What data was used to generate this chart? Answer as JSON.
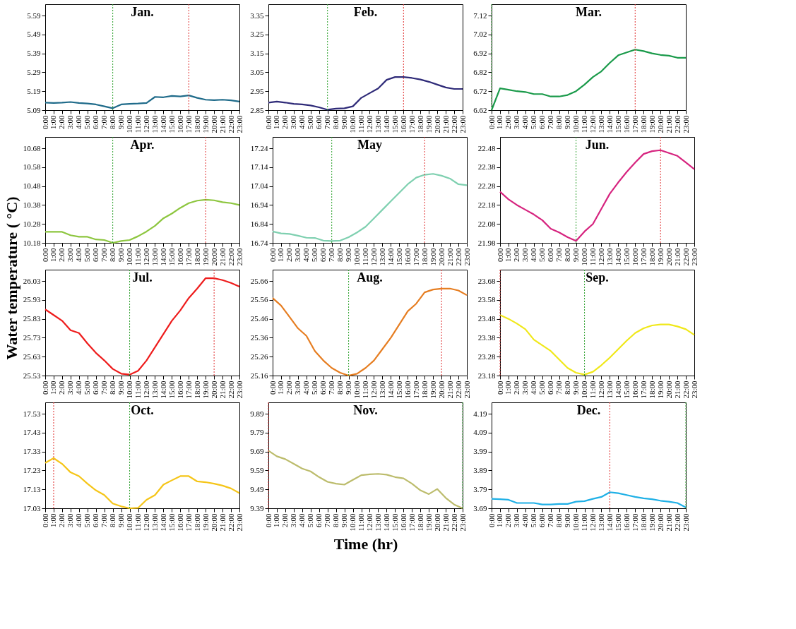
{
  "chart_data": [
    {
      "type": "line",
      "title": "Jan.",
      "color": "#1f6b8a",
      "categories": [
        "0:00",
        "1:00",
        "2:00",
        "3:00",
        "4:00",
        "5:00",
        "6:00",
        "7:00",
        "8:00",
        "9:00",
        "10:00",
        "11:00",
        "12:00",
        "13:00",
        "14:00",
        "15:00",
        "16:00",
        "17:00",
        "18:00",
        "19:00",
        "20:00",
        "21:00",
        "22:00",
        "23:00"
      ],
      "values": [
        5.13,
        5.128,
        5.13,
        5.133,
        5.128,
        5.125,
        5.12,
        5.11,
        5.1,
        5.12,
        5.123,
        5.125,
        5.128,
        5.16,
        5.158,
        5.165,
        5.162,
        5.168,
        5.155,
        5.145,
        5.143,
        5.145,
        5.142,
        5.135
      ],
      "ylim": [
        5.09,
        5.65
      ],
      "yticks": [
        5.09,
        5.19,
        5.29,
        5.39,
        5.49,
        5.59
      ],
      "grid": false,
      "ref_lines": [
        {
          "axis": "x",
          "value": "8:00",
          "color": "#2ca02c",
          "line_style": "dotted"
        },
        {
          "axis": "x",
          "value": "17:00",
          "color": "#e03030",
          "line_style": "dotted"
        }
      ]
    },
    {
      "type": "line",
      "title": "Feb.",
      "color": "#2e2a78",
      "categories": [
        "0:00",
        "1:00",
        "2:00",
        "3:00",
        "4:00",
        "5:00",
        "6:00",
        "7:00",
        "8:00",
        "9:00",
        "10:00",
        "11:00",
        "12:00",
        "13:00",
        "14:00",
        "15:00",
        "16:00",
        "17:00",
        "18:00",
        "19:00",
        "20:00",
        "21:00",
        "22:00",
        "23:00"
      ],
      "values": [
        2.89,
        2.895,
        2.89,
        2.883,
        2.88,
        2.875,
        2.865,
        2.852,
        2.858,
        2.86,
        2.87,
        2.915,
        2.94,
        2.965,
        3.01,
        3.025,
        3.025,
        3.02,
        3.012,
        3.0,
        2.985,
        2.97,
        2.962,
        2.962
      ],
      "ylim": [
        2.85,
        3.41
      ],
      "yticks": [
        2.85,
        2.95,
        3.05,
        3.15,
        3.25,
        3.35
      ],
      "grid": false,
      "ref_lines": [
        {
          "axis": "x",
          "value": "7:00",
          "color": "#2ca02c",
          "line_style": "dotted"
        },
        {
          "axis": "x",
          "value": "16:00",
          "color": "#e03030",
          "line_style": "dotted"
        }
      ]
    },
    {
      "type": "line",
      "title": "Mar.",
      "color": "#1a9a4a",
      "categories": [
        "0:00",
        "1:00",
        "2:00",
        "3:00",
        "4:00",
        "5:00",
        "6:00",
        "7:00",
        "8:00",
        "9:00",
        "10:00",
        "11:00",
        "12:00",
        "13:00",
        "14:00",
        "15:00",
        "16:00",
        "17:00",
        "18:00",
        "19:00",
        "20:00",
        "21:00",
        "22:00",
        "23:00"
      ],
      "values": [
        6.62,
        6.735,
        6.728,
        6.72,
        6.716,
        6.705,
        6.705,
        6.692,
        6.692,
        6.7,
        6.72,
        6.755,
        6.795,
        6.825,
        6.87,
        6.91,
        6.925,
        6.94,
        6.932,
        6.92,
        6.912,
        6.908,
        6.897,
        6.897
      ],
      "ylim": [
        6.62,
        7.18
      ],
      "yticks": [
        6.62,
        6.72,
        6.82,
        6.92,
        7.02,
        7.12
      ],
      "grid": false,
      "ref_lines": [
        {
          "axis": "x",
          "value": "0:00",
          "color": "#2ca02c",
          "line_style": "dotted"
        },
        {
          "axis": "x",
          "value": "17:00",
          "color": "#e03030",
          "line_style": "dotted"
        }
      ]
    },
    {
      "type": "line",
      "title": "Apr.",
      "ylabel": "Water temperature ( °C)",
      "color": "#8dc63f",
      "categories": [
        "0:00",
        "1:00",
        "2:00",
        "3:00",
        "4:00",
        "5:00",
        "6:00",
        "7:00",
        "8:00",
        "9:00",
        "10:00",
        "11:00",
        "12:00",
        "13:00",
        "14:00",
        "15:00",
        "16:00",
        "17:00",
        "18:00",
        "19:00",
        "20:00",
        "21:00",
        "22:00",
        "23:00"
      ],
      "values": [
        10.238,
        10.238,
        10.238,
        10.22,
        10.212,
        10.212,
        10.198,
        10.195,
        10.18,
        10.19,
        10.195,
        10.215,
        10.24,
        10.27,
        10.31,
        10.335,
        10.365,
        10.39,
        10.403,
        10.408,
        10.405,
        10.395,
        10.39,
        10.38
      ],
      "ylim": [
        10.18,
        10.74
      ],
      "yticks": [
        10.18,
        10.28,
        10.38,
        10.48,
        10.58,
        10.68
      ],
      "grid": false,
      "ref_lines": [
        {
          "axis": "x",
          "value": "8:00",
          "color": "#2ca02c",
          "line_style": "dotted"
        },
        {
          "axis": "x",
          "value": "19:00",
          "color": "#e03030",
          "line_style": "dotted"
        }
      ]
    },
    {
      "type": "line",
      "title": "May",
      "color": "#7fd0b0",
      "categories": [
        "0:00",
        "1:00",
        "2:00",
        "3:00",
        "4:00",
        "5:00",
        "6:00",
        "7:00",
        "8:00",
        "9:00",
        "10:00",
        "11:00",
        "12:00",
        "13:00",
        "14:00",
        "15:00",
        "16:00",
        "17:00",
        "18:00",
        "19:00",
        "20:00",
        "21:00",
        "22:00",
        "23:00"
      ],
      "values": [
        16.8,
        16.79,
        16.787,
        16.778,
        16.767,
        16.766,
        16.752,
        16.75,
        16.752,
        16.77,
        16.795,
        16.825,
        16.87,
        16.915,
        16.96,
        17.005,
        17.05,
        17.085,
        17.1,
        17.105,
        17.095,
        17.08,
        17.05,
        17.045
      ],
      "ylim": [
        16.74,
        17.3
      ],
      "yticks": [
        16.74,
        16.84,
        16.94,
        17.04,
        17.14,
        17.24
      ],
      "grid": false,
      "ref_lines": [
        {
          "axis": "x",
          "value": "7:00",
          "color": "#2ca02c",
          "line_style": "dotted"
        },
        {
          "axis": "x",
          "value": "18:00",
          "color": "#e03030",
          "line_style": "dotted"
        }
      ]
    },
    {
      "type": "line",
      "title": "Jun.",
      "color": "#d6247f",
      "categories": [
        "0:00",
        "1:00",
        "2:00",
        "3:00",
        "4:00",
        "5:00",
        "6:00",
        "7:00",
        "8:00",
        "9:00",
        "10:00",
        "11:00",
        "12:00",
        "13:00",
        "14:00",
        "15:00",
        "16:00",
        "17:00",
        "18:00",
        "19:00",
        "20:00",
        "21:00",
        "22:00",
        "23:00"
      ],
      "values": [
        22.25,
        22.21,
        22.18,
        22.155,
        22.13,
        22.1,
        22.055,
        22.035,
        22.01,
        21.99,
        22.04,
        22.08,
        22.16,
        22.24,
        22.3,
        22.355,
        22.405,
        22.45,
        22.465,
        22.47,
        22.455,
        22.44,
        22.405,
        22.37
      ],
      "ylim": [
        21.98,
        22.54
      ],
      "yticks": [
        21.98,
        22.08,
        22.18,
        22.28,
        22.38,
        22.48
      ],
      "grid": false,
      "ref_lines": [
        {
          "axis": "x",
          "value": "9:00",
          "color": "#2ca02c",
          "line_style": "dotted"
        },
        {
          "axis": "x",
          "value": "19:00",
          "color": "#e03030",
          "line_style": "dotted"
        }
      ]
    },
    {
      "type": "line",
      "title": "Jul.",
      "color": "#ee1c1c",
      "categories": [
        "0:00",
        "1:00",
        "2:00",
        "3:00",
        "4:00",
        "5:00",
        "6:00",
        "7:00",
        "8:00",
        "9:00",
        "10:00",
        "11:00",
        "12:00",
        "13:00",
        "14:00",
        "15:00",
        "16:00",
        "17:00",
        "18:00",
        "19:00",
        "20:00",
        "21:00",
        "22:00",
        "23:00"
      ],
      "values": [
        25.88,
        25.85,
        25.82,
        25.77,
        25.755,
        25.7,
        25.65,
        25.61,
        25.565,
        25.54,
        25.535,
        25.555,
        25.61,
        25.68,
        25.75,
        25.82,
        25.875,
        25.94,
        25.99,
        26.045,
        26.045,
        26.035,
        26.02,
        26.0
      ],
      "ylim": [
        25.53,
        26.09
      ],
      "yticks": [
        25.53,
        25.63,
        25.73,
        25.83,
        25.93,
        26.03
      ],
      "grid": false,
      "ref_lines": [
        {
          "axis": "x",
          "value": "10:00",
          "color": "#2ca02c",
          "line_style": "dotted"
        },
        {
          "axis": "x",
          "value": "20:00",
          "color": "#e03030",
          "line_style": "dotted"
        }
      ]
    },
    {
      "type": "line",
      "title": "Aug.",
      "color": "#e67e22",
      "categories": [
        "0:00",
        "1:00",
        "2:00",
        "3:00",
        "4:00",
        "5:00",
        "6:00",
        "7:00",
        "8:00",
        "9:00",
        "10:00",
        "11:00",
        "12:00",
        "13:00",
        "14:00",
        "15:00",
        "16:00",
        "17:00",
        "18:00",
        "19:00",
        "20:00",
        "21:00",
        "22:00",
        "23:00"
      ],
      "values": [
        25.57,
        25.53,
        25.47,
        25.41,
        25.37,
        25.29,
        25.24,
        25.2,
        25.175,
        25.16,
        25.17,
        25.2,
        25.24,
        25.3,
        25.36,
        25.43,
        25.5,
        25.54,
        25.6,
        25.615,
        25.62,
        25.62,
        25.61,
        25.585
      ],
      "ylim": [
        25.16,
        25.72
      ],
      "yticks": [
        25.16,
        25.26,
        25.36,
        25.46,
        25.56,
        25.66
      ],
      "grid": false,
      "ref_lines": [
        {
          "axis": "x",
          "value": "9:00",
          "color": "#2ca02c",
          "line_style": "dotted"
        },
        {
          "axis": "x",
          "value": "20:00",
          "color": "#e03030",
          "line_style": "dotted"
        }
      ]
    },
    {
      "type": "line",
      "title": "Sep.",
      "color": "#f0e81a",
      "categories": [
        "0:00",
        "1:00",
        "2:00",
        "3:00",
        "4:00",
        "5:00",
        "6:00",
        "7:00",
        "8:00",
        "9:00",
        "10:00",
        "11:00",
        "12:00",
        "13:00",
        "14:00",
        "15:00",
        "16:00",
        "17:00",
        "18:00",
        "19:00",
        "20:00",
        "21:00",
        "22:00",
        "23:00"
      ],
      "values": [
        23.5,
        23.48,
        23.455,
        23.425,
        23.37,
        23.34,
        23.31,
        23.265,
        23.22,
        23.195,
        23.185,
        23.2,
        23.235,
        23.275,
        23.32,
        23.365,
        23.405,
        23.43,
        23.445,
        23.45,
        23.45,
        23.44,
        23.425,
        23.395
      ],
      "ylim": [
        23.18,
        23.74
      ],
      "yticks": [
        23.18,
        23.28,
        23.38,
        23.48,
        23.58,
        23.68
      ],
      "grid": false,
      "ref_lines": [
        {
          "axis": "x",
          "value": "10:00",
          "color": "#2ca02c",
          "line_style": "dotted"
        },
        {
          "axis": "x",
          "value": "0:00",
          "color": "#e03030",
          "line_style": "dotted"
        }
      ]
    },
    {
      "type": "line",
      "title": "Oct.",
      "color": "#f5c518",
      "categories": [
        "0:00",
        "1:00",
        "2:00",
        "3:00",
        "4:00",
        "5:00",
        "6:00",
        "7:00",
        "8:00",
        "9:00",
        "10:00",
        "11:00",
        "12:00",
        "13:00",
        "14:00",
        "15:00",
        "16:00",
        "17:00",
        "18:00",
        "19:00",
        "20:00",
        "21:00",
        "22:00",
        "23:00"
      ],
      "values": [
        17.27,
        17.295,
        17.265,
        17.22,
        17.2,
        17.16,
        17.125,
        17.1,
        17.055,
        17.04,
        17.03,
        17.032,
        17.075,
        17.1,
        17.155,
        17.178,
        17.2,
        17.2,
        17.172,
        17.168,
        17.16,
        17.15,
        17.135,
        17.11
      ],
      "ylim": [
        17.03,
        17.59
      ],
      "yticks": [
        17.03,
        17.13,
        17.23,
        17.33,
        17.43,
        17.53
      ],
      "grid": false,
      "ref_lines": [
        {
          "axis": "x",
          "value": "10:00",
          "color": "#2ca02c",
          "line_style": "dotted"
        },
        {
          "axis": "x",
          "value": "1:00",
          "color": "#e03030",
          "line_style": "dotted"
        }
      ]
    },
    {
      "type": "line",
      "title": "Nov.",
      "xlabel": "Time (hr)",
      "color": "#bcbc6c",
      "categories": [
        "0:00",
        "1:00",
        "2:00",
        "3:00",
        "4:00",
        "5:00",
        "6:00",
        "7:00",
        "8:00",
        "9:00",
        "10:00",
        "11:00",
        "12:00",
        "13:00",
        "14:00",
        "15:00",
        "16:00",
        "17:00",
        "18:00",
        "19:00",
        "20:00",
        "21:00",
        "22:00",
        "23:00"
      ],
      "values": [
        9.695,
        9.665,
        9.65,
        9.625,
        9.6,
        9.585,
        9.555,
        9.53,
        9.52,
        9.515,
        9.54,
        9.565,
        9.57,
        9.572,
        9.568,
        9.555,
        9.548,
        9.52,
        9.485,
        9.465,
        9.492,
        9.445,
        9.41,
        9.39
      ],
      "ylim": [
        9.39,
        9.95
      ],
      "yticks": [
        9.39,
        9.49,
        9.59,
        9.69,
        9.79,
        9.89
      ],
      "grid": false,
      "ref_lines": [
        {
          "axis": "x",
          "value": "23:00",
          "color": "#2ca02c",
          "line_style": "dotted"
        },
        {
          "axis": "x",
          "value": "0:00",
          "color": "#e03030",
          "line_style": "dotted"
        }
      ]
    },
    {
      "type": "line",
      "title": "Dec.",
      "color": "#1fb0e6",
      "categories": [
        "0:00",
        "1:00",
        "2:00",
        "3:00",
        "4:00",
        "5:00",
        "6:00",
        "7:00",
        "8:00",
        "9:00",
        "10:00",
        "11:00",
        "12:00",
        "13:00",
        "14:00",
        "15:00",
        "16:00",
        "17:00",
        "18:00",
        "19:00",
        "20:00",
        "21:00",
        "22:00",
        "23:00"
      ],
      "values": [
        3.74,
        3.738,
        3.735,
        3.718,
        3.718,
        3.718,
        3.71,
        3.71,
        3.713,
        3.713,
        3.725,
        3.728,
        3.74,
        3.75,
        3.775,
        3.77,
        3.76,
        3.75,
        3.743,
        3.738,
        3.73,
        3.725,
        3.718,
        3.695
      ],
      "ylim": [
        3.69,
        4.25
      ],
      "yticks": [
        3.69,
        3.79,
        3.89,
        3.99,
        4.09,
        4.19
      ],
      "grid": false,
      "ref_lines": [
        {
          "axis": "x",
          "value": "23:00",
          "color": "#2ca02c",
          "line_style": "dotted"
        },
        {
          "axis": "x",
          "value": "14:00",
          "color": "#e03030",
          "line_style": "dotted"
        }
      ]
    }
  ]
}
